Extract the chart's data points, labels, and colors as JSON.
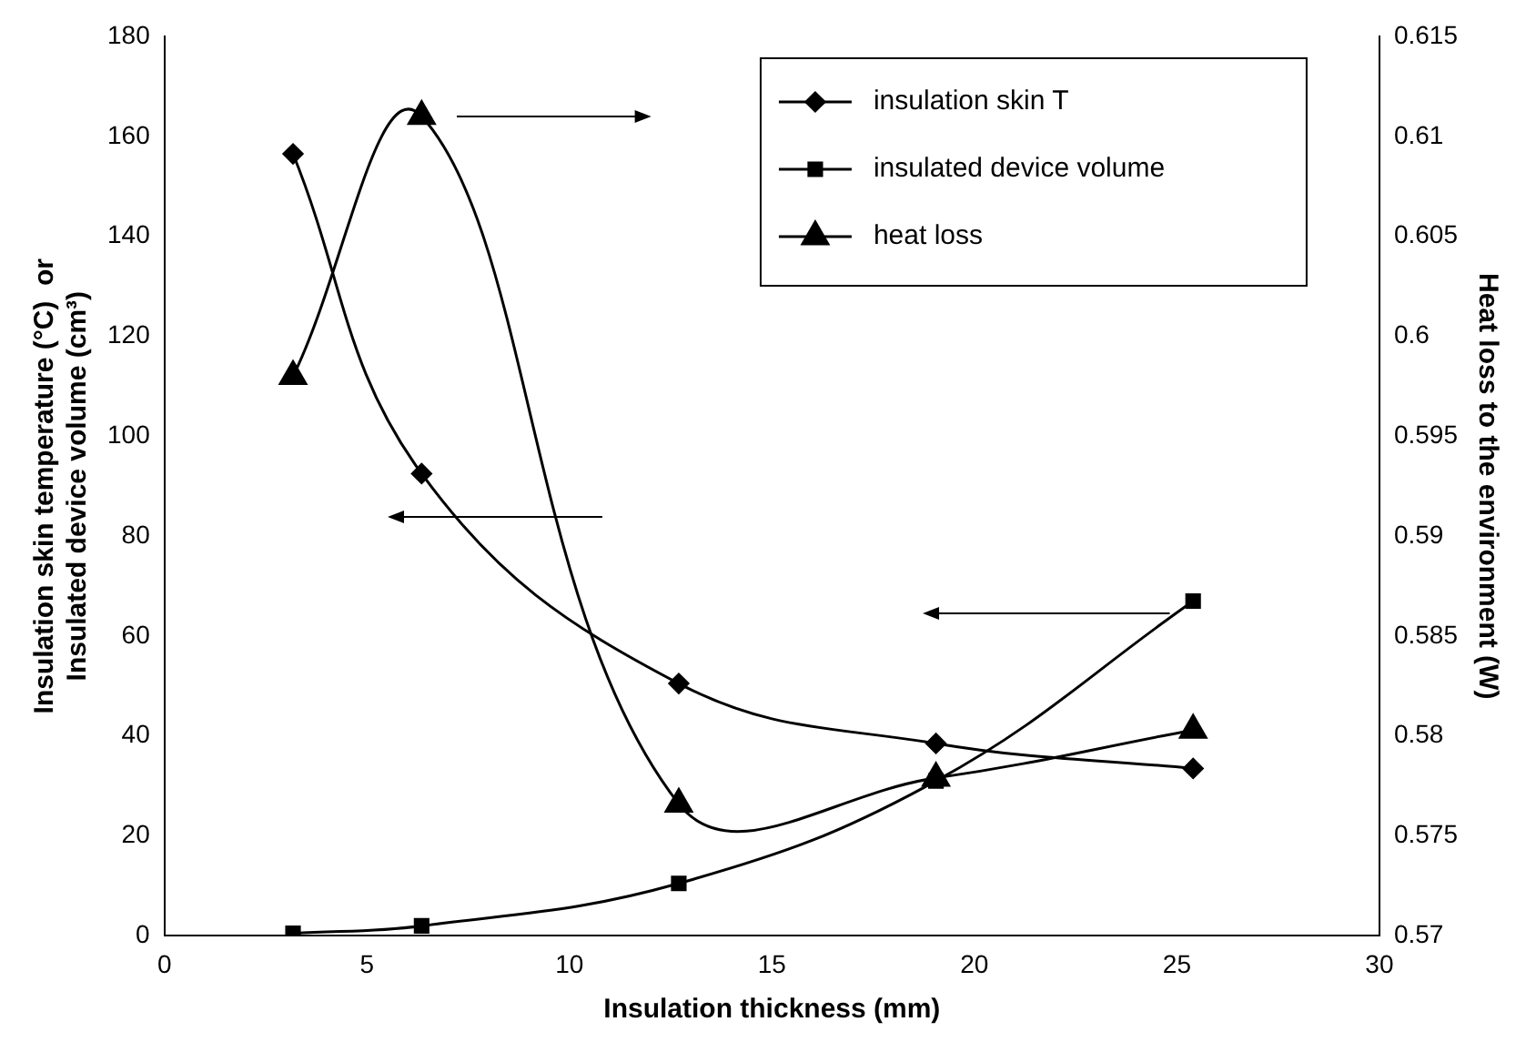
{
  "chart_data": {
    "type": "line",
    "xlabel": "Insulation thickness (mm)",
    "ylabel": "Insulation skin temperature (°C)  or\nInsulated device volume (cm³)",
    "y2label": "Heat loss to the environment (W)",
    "x": [
      3.175,
      6.35,
      12.7,
      19.05,
      25.4
    ],
    "series": [
      {
        "name": "insulation skin T",
        "color": "#000000",
        "marker": "diamond",
        "values": [
          156.5,
          92.5,
          50.5,
          38.5,
          33.5
        ]
      },
      {
        "name": "insulated device volume",
        "color": "#000000",
        "marker": "square",
        "values": [
          0.5,
          2,
          10.5,
          31,
          67
        ]
      },
      {
        "name": "heat loss",
        "color": "#000000",
        "marker": "triangle",
        "axis": "y2",
        "values": [
          0.598,
          0.611,
          0.5766,
          0.5779,
          0.5803
        ]
      }
    ],
    "xlim": [
      0,
      30
    ],
    "xticks": [
      0,
      5,
      10,
      15,
      20,
      25,
      30
    ],
    "ylim": [
      0,
      180
    ],
    "yticks": [
      0,
      20,
      40,
      60,
      80,
      100,
      120,
      140,
      160,
      180
    ],
    "y2lim": [
      0.57,
      0.615
    ],
    "y2ticks": [
      0.57,
      0.575,
      0.58,
      0.585,
      0.59,
      0.595,
      0.6,
      0.605,
      0.61,
      0.615
    ],
    "grid": false,
    "legend": "top right"
  }
}
